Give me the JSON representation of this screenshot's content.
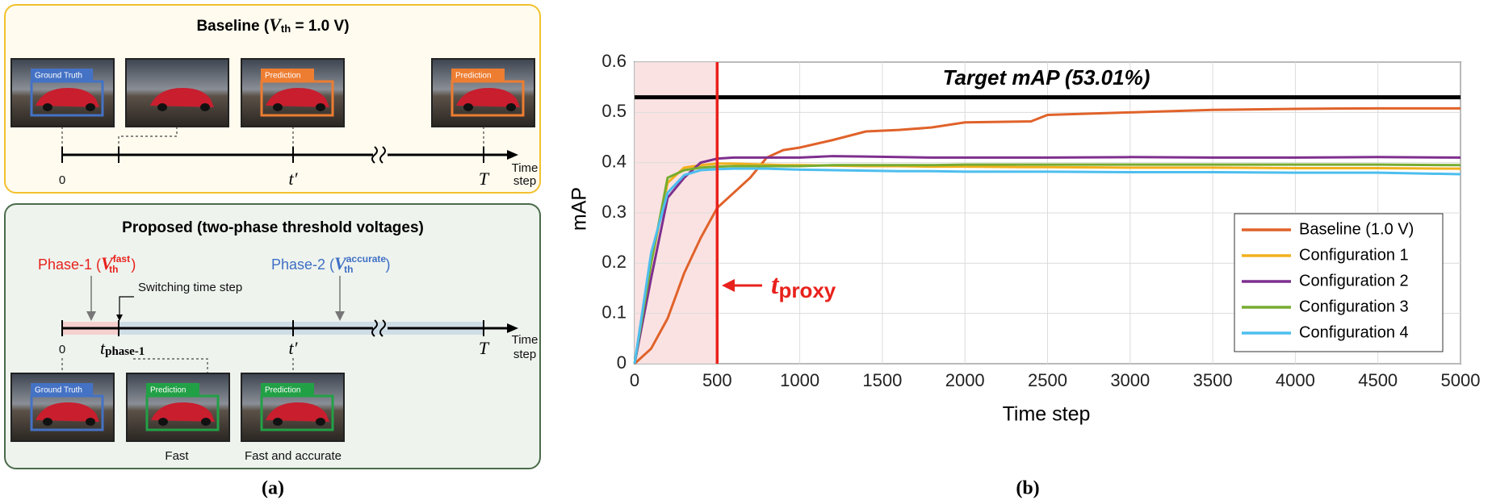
{
  "diagram": {
    "baseline": {
      "title_prefix": "Baseline (",
      "title_var": "V",
      "title_sub": "th",
      "title_suffix": " = 1.0 V)",
      "images": [
        "Ground Truth",
        "",
        "Prediction",
        "Prediction"
      ],
      "axis": {
        "start": "0",
        "mid": "t′",
        "end": "T",
        "unit_1": "Time",
        "unit_2": "step"
      }
    },
    "proposed": {
      "title": "Proposed (two-phase threshold voltages)",
      "phase1": {
        "prefix": "Phase-1 (",
        "var": "V",
        "sup": "fast",
        "sub": "th",
        "suffix": ")"
      },
      "phase2": {
        "prefix": "Phase-2 (",
        "var": "V",
        "sup": "accurate",
        "sub": "th",
        "suffix": ")"
      },
      "switch_label": "Switching time step",
      "images": [
        "Ground Truth",
        "Prediction",
        "Prediction"
      ],
      "captions": [
        "Fast",
        "Fast and accurate"
      ],
      "axis": {
        "start": "0",
        "switch_var": "t",
        "switch_sub": "phase-1",
        "mid": "t′",
        "end": "T",
        "unit_1": "Time",
        "unit_2": "step"
      }
    },
    "caption": "(a)"
  },
  "chart_data": {
    "type": "line",
    "caption": "(b)",
    "xlabel": "Time step",
    "ylabel": "mAP",
    "x": [
      0,
      100,
      200,
      300,
      400,
      500,
      600,
      700,
      800,
      900,
      1000,
      1200,
      1400,
      1600,
      1800,
      2000,
      2400,
      2500,
      3000,
      3500,
      4000,
      4500,
      5000
    ],
    "series": [
      {
        "name": "Baseline (1.0 V)",
        "color": "#e0622a",
        "values": [
          0,
          0.03,
          0.09,
          0.18,
          0.25,
          0.31,
          0.34,
          0.37,
          0.41,
          0.425,
          0.43,
          0.445,
          0.462,
          0.465,
          0.47,
          0.48,
          0.482,
          0.495,
          0.5,
          0.505,
          0.507,
          0.508,
          0.508
        ]
      },
      {
        "name": "Configuration 1",
        "color": "#f2b01e",
        "values": [
          0,
          0.2,
          0.36,
          0.39,
          0.395,
          0.398,
          0.398,
          0.397,
          0.396,
          0.395,
          0.395,
          0.394,
          0.393,
          0.393,
          0.392,
          0.392,
          0.391,
          0.391,
          0.39,
          0.39,
          0.389,
          0.389,
          0.388
        ]
      },
      {
        "name": "Configuration 2",
        "color": "#7e2f8e",
        "values": [
          0,
          0.17,
          0.33,
          0.37,
          0.4,
          0.408,
          0.41,
          0.41,
          0.41,
          0.41,
          0.41,
          0.413,
          0.412,
          0.411,
          0.41,
          0.41,
          0.41,
          0.41,
          0.411,
          0.41,
          0.41,
          0.411,
          0.41
        ]
      },
      {
        "name": "Configuration 3",
        "color": "#77ac30",
        "values": [
          0,
          0.2,
          0.37,
          0.385,
          0.39,
          0.392,
          0.393,
          0.393,
          0.393,
          0.393,
          0.393,
          0.395,
          0.395,
          0.395,
          0.395,
          0.396,
          0.396,
          0.396,
          0.396,
          0.396,
          0.396,
          0.396,
          0.395
        ]
      },
      {
        "name": "Configuration 4",
        "color": "#4dbeee",
        "values": [
          0,
          0.22,
          0.34,
          0.375,
          0.385,
          0.387,
          0.388,
          0.388,
          0.388,
          0.387,
          0.386,
          0.385,
          0.384,
          0.383,
          0.383,
          0.382,
          0.382,
          0.382,
          0.381,
          0.381,
          0.38,
          0.38,
          0.377
        ]
      }
    ],
    "xlim": [
      0,
      5000
    ],
    "xticks": [
      0,
      500,
      1000,
      1500,
      2000,
      2500,
      3000,
      3500,
      4000,
      4500,
      5000
    ],
    "ylim": [
      0,
      0.6
    ],
    "yticks": [
      0,
      0.1,
      0.2,
      0.3,
      0.4,
      0.5,
      0.6
    ],
    "grid": true,
    "legend": "right",
    "target": {
      "value": 0.5301,
      "label": "Target mAP (53.01%)"
    },
    "proxy": {
      "value": 500,
      "label": "t",
      "sub": "proxy"
    }
  }
}
